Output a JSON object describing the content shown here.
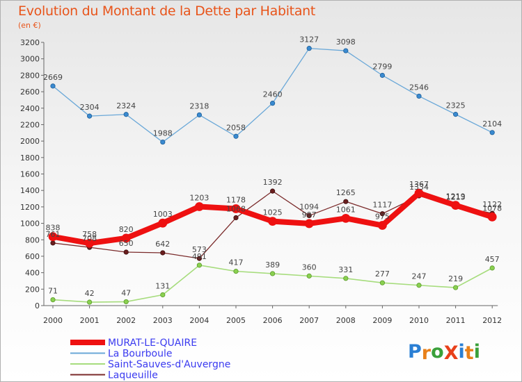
{
  "title": "Evolution du Montant de la Dette par Habitant",
  "subtitle": "(en €)",
  "logo": {
    "text": "ProXiti",
    "letter_colors": [
      "#2a7fd4",
      "#e8801a",
      "#3aa03a",
      "#e8401a",
      "#2a7fd4",
      "#e8801a",
      "#3aa03a"
    ]
  },
  "chart_data": {
    "type": "line",
    "x": [
      "2000",
      "2001",
      "2002",
      "2003",
      "2004",
      "2005",
      "2006",
      "2007",
      "2008",
      "2009",
      "2010",
      "2011",
      "2012"
    ],
    "ylim": [
      0,
      3200
    ],
    "yticks": [
      0,
      200,
      400,
      600,
      800,
      1000,
      1200,
      1400,
      1600,
      1800,
      2000,
      2200,
      2400,
      2600,
      2800,
      3000,
      3200
    ],
    "grid": false,
    "legend_position": "bottom-left",
    "series": [
      {
        "name": "MURAT-LE-QUAIRE",
        "color": "#ee1111",
        "values": [
          838,
          758,
          820,
          1003,
          1203,
          1178,
          1025,
          997,
          1061,
          975,
          1367,
          1219,
          1078
        ]
      },
      {
        "name": "La Bourboule",
        "color": "#6aa8d8",
        "values": [
          2669,
          2304,
          2324,
          1988,
          2318,
          2058,
          2460,
          3127,
          3098,
          2799,
          2546,
          2325,
          2104
        ]
      },
      {
        "name": "Saint-Sauves-d'Auvergne",
        "color": "#a6dc7c",
        "values": [
          71,
          42,
          47,
          131,
          491,
          417,
          389,
          360,
          331,
          277,
          247,
          219,
          457
        ]
      },
      {
        "name": "Laqueuille",
        "color": "#7a2a2a",
        "values": [
          761,
          708,
          650,
          642,
          573,
          1068,
          1392,
          1094,
          1265,
          1117,
          1334,
          1213,
          1122
        ]
      }
    ]
  }
}
